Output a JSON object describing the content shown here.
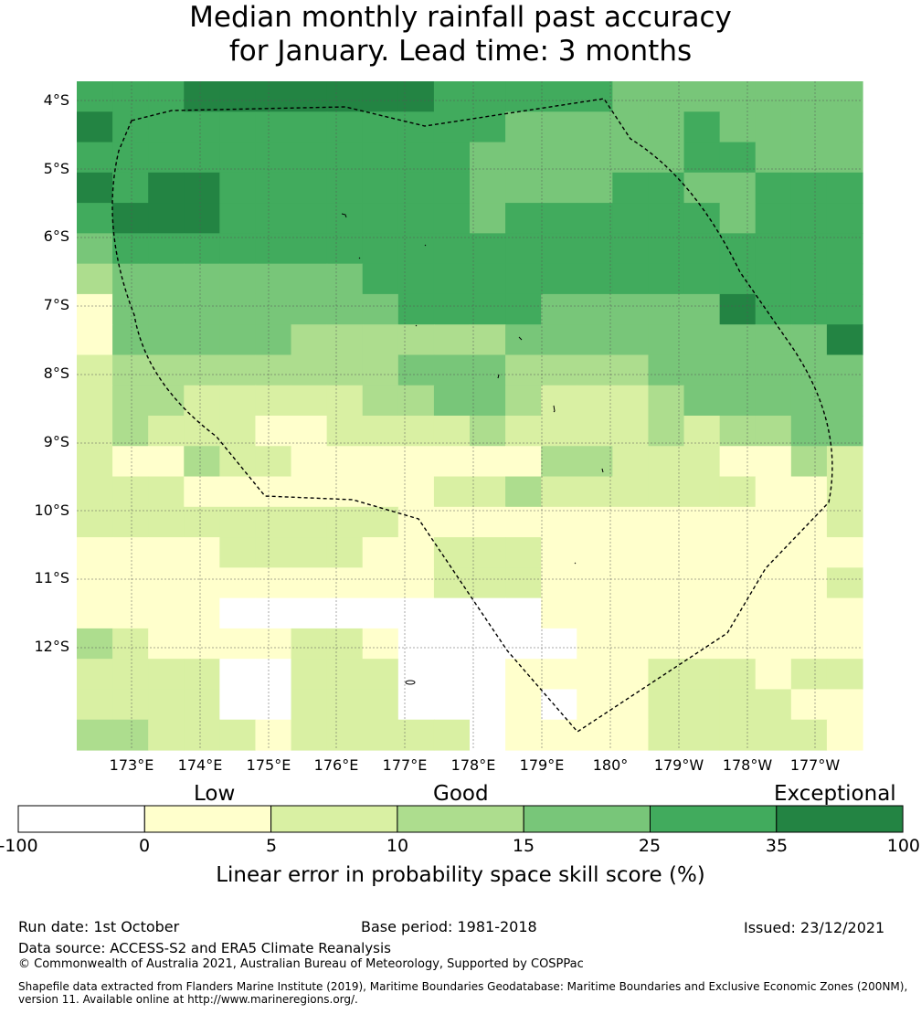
{
  "title": {
    "line1": "Median monthly rainfall past accuracy",
    "line2": "for January. Lead time: 3 months"
  },
  "map": {
    "lat_labels": [
      "4°S",
      "5°S",
      "6°S",
      "7°S",
      "8°S",
      "9°S",
      "10°S",
      "11°S",
      "12°S"
    ],
    "lon_labels": [
      "173°E",
      "174°E",
      "175°E",
      "176°E",
      "177°E",
      "178°E",
      "179°E",
      "180°",
      "179°W",
      "178°W",
      "177°W"
    ],
    "palette": [
      "#ffffff",
      "#ffffcc",
      "#d9f0a3",
      "#addd8e",
      "#78c679",
      "#41ab5d",
      "#238443"
    ],
    "grid_cells": [
      "5556666666555554444444",
      "6555555555554444454444",
      "5555555555544444455444",
      "6566555555544445544555",
      "5666555555545555554555",
      "4555555555555555555555",
      "3444444455555555555555",
      "1444444445555444446555",
      "1444443333334444444446",
      "2333333334443333444444",
      "2332222233443222344444",
      "2322211222232222323344",
      "2113221111111332221132",
      "2221111111223222222112",
      "2222222221111111111112",
      "1111222211222111111111",
      "1111111111222111111112",
      "1111000000000111111111",
      "3211112210000011111111",
      "2222002220001111222122",
      "2222002220001011222211",
      "3322212222201111222221"
    ],
    "boundary_line": "dashed EEZ boundary"
  },
  "legend": {
    "categories": [
      "Low",
      "Good",
      "Exceptional"
    ],
    "ticks": [
      "-100",
      "0",
      "5",
      "10",
      "15",
      "25",
      "35",
      "100"
    ],
    "title": "Linear error in probability space skill score (%)"
  },
  "footer": {
    "run_date": "Run date: 1st October",
    "base_period": "Base period: 1981-2018",
    "issued": "Issued: 23/12/2021",
    "data_source": "Data source: ACCESS-S2 and ERA5 Climate Reanalysis",
    "copyright": "© Commonwealth of Australia 2021, Australian Bureau of Meteorology, Supported by COSPPac",
    "shapefile": "Shapefile data extracted from Flanders Marine Institute (2019), Maritime Boundaries Geodatabase: Maritime Boundaries and Exclusive Economic Zones (200NM), version 11. Available online at http://www.marineregions.org/."
  }
}
